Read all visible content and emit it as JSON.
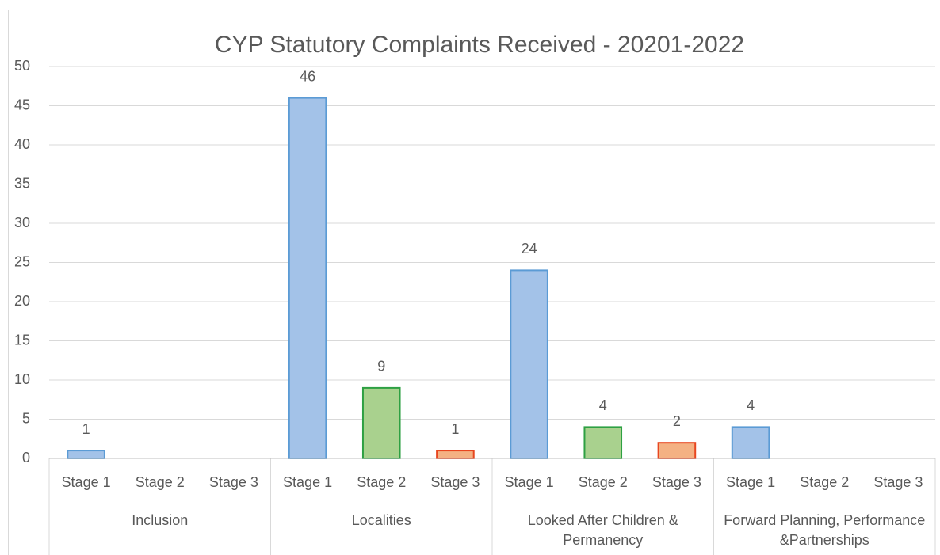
{
  "chart_data": {
    "type": "bar",
    "title": "CYP Statutory Complaints Received - 20201-2022",
    "categories": [
      "Inclusion",
      "Localities",
      "Looked After Children & Permanency",
      "Forward Planning, Performance &Partnerships"
    ],
    "series": [
      {
        "name": "Stage 1",
        "color": "#a3c2e8",
        "edgecolor": "#5b9bd5",
        "values": [
          1,
          46,
          24,
          4
        ]
      },
      {
        "name": "Stage 2",
        "color": "#a9d18e",
        "edgecolor": "#2ea043",
        "values": [
          null,
          9,
          4,
          null
        ]
      },
      {
        "name": "Stage 3",
        "color": "#f4b183",
        "edgecolor": "#e8461f",
        "values": [
          null,
          1,
          2,
          null
        ]
      }
    ],
    "ylim": [
      0,
      50
    ],
    "yticks": [
      0,
      5,
      10,
      15,
      20,
      25,
      30,
      35,
      40,
      45,
      50
    ],
    "grid": true
  }
}
